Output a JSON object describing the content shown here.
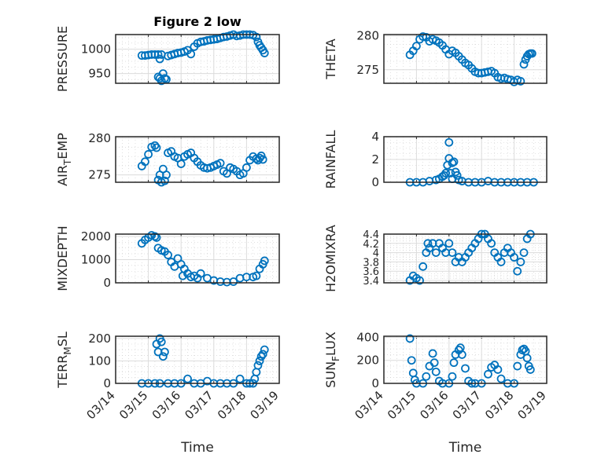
{
  "figure": {
    "title": "Figure 2 low",
    "marker_color": "#0072BD"
  },
  "chart_data": [
    {
      "type": "scatter",
      "ylabel": "PRESSURE",
      "xlabel": "",
      "ylim": [
        930,
        1030
      ],
      "yticks": [
        950,
        1000
      ],
      "grid": true,
      "x": [
        14.8,
        14.9,
        15.0,
        15.1,
        15.2,
        15.3,
        15.35,
        15.4,
        15.3,
        15.35,
        15.4,
        15.45,
        15.5,
        15.55,
        15.6,
        15.7,
        15.8,
        15.9,
        16.0,
        16.1,
        16.2,
        16.3,
        16.4,
        16.5,
        16.6,
        16.7,
        16.8,
        16.9,
        17.0,
        17.1,
        17.2,
        17.3,
        17.4,
        17.5,
        17.6,
        17.7,
        17.8,
        17.9,
        18.0,
        18.1,
        18.2,
        18.3,
        18.35,
        18.4,
        18.45,
        18.5,
        18.55
      ],
      "y": [
        987,
        987,
        988,
        989,
        989,
        989,
        980,
        989,
        943,
        940,
        935,
        950,
        940,
        938,
        986,
        988,
        990,
        992,
        993,
        995,
        998,
        990,
        1005,
        1012,
        1015,
        1016,
        1018,
        1019,
        1020,
        1021,
        1023,
        1025,
        1026,
        1028,
        1030,
        1027,
        1028,
        1030,
        1030,
        1030,
        1029,
        1025,
        1015,
        1008,
        1003,
        998,
        992
      ]
    },
    {
      "type": "scatter",
      "ylabel": "THETA",
      "xlabel": "",
      "ylim": [
        273,
        280.2
      ],
      "yticks": [
        275,
        280
      ],
      "grid": true,
      "x": [
        14.8,
        14.9,
        15.0,
        15.1,
        15.2,
        15.3,
        15.4,
        15.5,
        15.6,
        15.7,
        15.8,
        15.9,
        16.0,
        16.1,
        16.2,
        16.3,
        16.4,
        16.5,
        16.6,
        16.7,
        16.8,
        16.9,
        17.0,
        17.1,
        17.2,
        17.3,
        17.4,
        17.5,
        17.6,
        17.7,
        17.8,
        17.9,
        18.0,
        18.1,
        18.2,
        18.3,
        18.35,
        18.4,
        18.45,
        18.5,
        18.55
      ],
      "y": [
        277.2,
        277.8,
        278.5,
        279.5,
        279.9,
        279.8,
        279.2,
        279.5,
        279.3,
        279.0,
        278.6,
        278.0,
        277.3,
        277.8,
        277.5,
        277.0,
        276.5,
        276.0,
        275.7,
        275.2,
        274.7,
        274.5,
        274.5,
        274.6,
        274.7,
        274.8,
        274.5,
        273.9,
        273.7,
        273.8,
        273.6,
        273.5,
        273.2,
        273.5,
        273.3,
        275.8,
        276.5,
        277.0,
        277.3,
        277.4,
        277.4
      ]
    },
    {
      "type": "scatter",
      "ylabel": "AIR_TEMP",
      "xlabel": "",
      "ylim": [
        274,
        280.2
      ],
      "yticks": [
        275,
        280
      ],
      "grid": true,
      "x": [
        14.8,
        14.9,
        15.0,
        15.1,
        15.2,
        15.25,
        15.3,
        15.35,
        15.4,
        15.45,
        15.5,
        15.55,
        15.6,
        15.7,
        15.8,
        15.9,
        16.0,
        16.1,
        16.2,
        16.3,
        16.4,
        16.5,
        16.6,
        16.7,
        16.8,
        16.9,
        17.0,
        17.1,
        17.2,
        17.3,
        17.4,
        17.5,
        17.6,
        17.7,
        17.8,
        17.9,
        18.0,
        18.1,
        18.2,
        18.3,
        18.35,
        18.4,
        18.45,
        18.5
      ],
      "y": [
        276.2,
        276.8,
        277.8,
        278.8,
        279.0,
        278.7,
        274.3,
        275.0,
        274.0,
        275.8,
        274.2,
        275.0,
        278.0,
        278.2,
        277.5,
        277.3,
        276.5,
        277.5,
        277.8,
        278.0,
        277.3,
        276.8,
        276.3,
        276.0,
        275.9,
        276.0,
        276.2,
        276.4,
        276.6,
        275.5,
        275.2,
        276.0,
        275.8,
        275.5,
        275.0,
        275.2,
        276.0,
        277.0,
        277.5,
        277.2,
        277.0,
        277.3,
        277.6,
        277.1
      ]
    },
    {
      "type": "scatter",
      "ylabel": "RAINFALL",
      "xlabel": "",
      "ylim": [
        0,
        4
      ],
      "yticks": [
        0,
        2,
        4
      ],
      "grid": true,
      "x": [
        14.8,
        15.0,
        15.2,
        15.4,
        15.6,
        15.7,
        15.8,
        15.85,
        15.9,
        15.95,
        16.0,
        16.0,
        16.05,
        16.1,
        16.1,
        16.15,
        16.2,
        16.25,
        16.3,
        16.4,
        16.6,
        16.8,
        17.0,
        17.2,
        17.4,
        17.6,
        17.8,
        18.0,
        18.2,
        18.4,
        18.6
      ],
      "y": [
        0,
        0,
        0,
        0.1,
        0.2,
        0.3,
        0.5,
        0.6,
        0.8,
        1.5,
        3.5,
        2.1,
        0.8,
        0.3,
        1.7,
        1.8,
        0.9,
        0.6,
        0.2,
        0.1,
        0,
        0,
        0,
        0.1,
        0,
        0,
        0,
        0,
        0,
        0,
        0
      ]
    },
    {
      "type": "scatter",
      "ylabel": "MIXDEPTH",
      "xlabel": "",
      "ylim": [
        0,
        2100
      ],
      "yticks": [
        0,
        1000,
        2000
      ],
      "grid": true,
      "x": [
        14.8,
        14.9,
        15.0,
        15.1,
        15.2,
        15.25,
        15.3,
        15.4,
        15.5,
        15.6,
        15.7,
        15.8,
        15.9,
        16.0,
        16.05,
        16.1,
        16.2,
        16.3,
        16.4,
        16.5,
        16.6,
        16.8,
        17.0,
        17.2,
        17.4,
        17.6,
        17.8,
        18.0,
        18.2,
        18.3,
        18.4,
        18.5,
        18.55
      ],
      "y": [
        1700,
        1850,
        1950,
        2050,
        2000,
        1950,
        1500,
        1400,
        1350,
        1200,
        900,
        700,
        1050,
        800,
        300,
        600,
        400,
        250,
        300,
        200,
        400,
        200,
        100,
        50,
        30,
        50,
        200,
        250,
        250,
        300,
        600,
        800,
        950
      ]
    },
    {
      "type": "scatter",
      "ylabel": "H2OMIXRA",
      "xlabel": "",
      "ylim": [
        3.35,
        4.4
      ],
      "yticks": [
        3.4,
        3.6,
        3.8,
        4,
        4.2,
        4.4
      ],
      "grid": true,
      "x": [
        14.8,
        14.9,
        15.0,
        15.1,
        15.2,
        15.3,
        15.35,
        15.4,
        15.5,
        15.6,
        15.7,
        15.8,
        15.9,
        16.0,
        16.1,
        16.2,
        16.3,
        16.4,
        16.5,
        16.6,
        16.7,
        16.8,
        16.9,
        17.0,
        17.1,
        17.2,
        17.3,
        17.4,
        17.5,
        17.6,
        17.7,
        17.8,
        17.9,
        18.0,
        18.1,
        18.2,
        18.3,
        18.4,
        18.5
      ],
      "y": [
        3.4,
        3.5,
        3.45,
        3.4,
        3.7,
        4.0,
        4.2,
        4.1,
        4.2,
        4.0,
        4.2,
        4.1,
        4.0,
        4.2,
        4.0,
        3.8,
        3.9,
        3.8,
        3.9,
        4.0,
        4.1,
        4.2,
        4.3,
        4.4,
        4.4,
        4.3,
        4.2,
        4.0,
        3.9,
        3.8,
        4.0,
        4.1,
        4.0,
        3.9,
        3.6,
        3.8,
        4.0,
        4.3,
        4.4
      ]
    },
    {
      "type": "scatter",
      "ylabel": "TERR_MSL",
      "xlabel": "Time",
      "ylim": [
        0,
        210
      ],
      "yticks": [
        0,
        100,
        200
      ],
      "grid": true,
      "xticks": [
        "03/14",
        "03/15",
        "03/16",
        "03/17",
        "03/18",
        "03/19"
      ],
      "x": [
        14.8,
        15.0,
        15.2,
        15.25,
        15.3,
        15.35,
        15.4,
        15.45,
        15.5,
        15.35,
        15.6,
        15.8,
        16.0,
        16.2,
        16.4,
        16.6,
        16.8,
        17.0,
        17.2,
        17.4,
        17.6,
        17.8,
        18.0,
        18.1,
        18.2,
        18.25,
        18.3,
        18.35,
        18.4,
        18.45,
        18.5,
        18.55
      ],
      "y": [
        0,
        0,
        0,
        175,
        140,
        200,
        185,
        120,
        140,
        0,
        0,
        0,
        0,
        20,
        0,
        0,
        10,
        0,
        0,
        0,
        0,
        20,
        0,
        0,
        0,
        20,
        50,
        80,
        100,
        120,
        130,
        150
      ]
    },
    {
      "type": "scatter",
      "ylabel": "SUN_FLUX",
      "xlabel": "Time",
      "ylim": [
        0,
        410
      ],
      "yticks": [
        0,
        200,
        400
      ],
      "grid": true,
      "xticks": [
        "03/14",
        "03/15",
        "03/16",
        "03/17",
        "03/18",
        "03/19"
      ],
      "x": [
        14.8,
        14.85,
        14.9,
        14.95,
        15.0,
        15.2,
        15.3,
        15.4,
        15.5,
        15.55,
        15.6,
        15.7,
        15.8,
        16.0,
        16.1,
        16.15,
        16.2,
        16.3,
        16.35,
        16.4,
        16.5,
        16.6,
        16.7,
        16.8,
        17.0,
        17.2,
        17.3,
        17.4,
        17.5,
        17.6,
        17.8,
        18.0,
        18.1,
        18.2,
        18.25,
        18.3,
        18.35,
        18.4,
        18.45,
        18.5
      ],
      "y": [
        390,
        200,
        90,
        30,
        0,
        0,
        60,
        150,
        260,
        180,
        100,
        20,
        0,
        0,
        60,
        180,
        250,
        290,
        310,
        250,
        130,
        20,
        0,
        0,
        0,
        80,
        140,
        160,
        120,
        40,
        0,
        0,
        150,
        250,
        290,
        300,
        280,
        220,
        150,
        120
      ]
    }
  ]
}
